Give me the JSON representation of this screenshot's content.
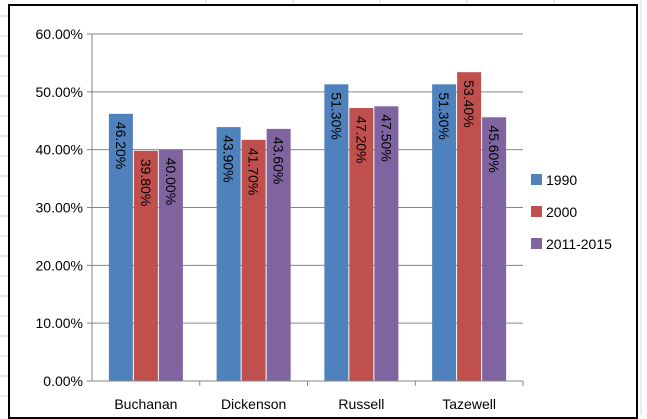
{
  "chart_data": {
    "type": "bar",
    "categories": [
      "Buchanan",
      "Dickenson",
      "Russell",
      "Tazewell"
    ],
    "series": [
      {
        "name": "1990",
        "values": [
          46.2,
          43.9,
          51.3,
          51.3
        ],
        "labels": [
          "46.20%",
          "43.90%",
          "51.30%",
          "51.30%"
        ],
        "color": "#4f81bd"
      },
      {
        "name": "2000",
        "values": [
          39.8,
          41.7,
          47.2,
          53.4
        ],
        "labels": [
          "39.80%",
          "41.70%",
          "47.20%",
          "53.40%"
        ],
        "color": "#c0504d"
      },
      {
        "name": "2011-2015",
        "values": [
          40.0,
          43.6,
          47.5,
          45.6
        ],
        "labels": [
          "40.00%",
          "43.60%",
          "47.50%",
          "45.60%"
        ],
        "color": "#8064a2"
      }
    ],
    "y_ticks": [
      "0.00%",
      "10.00%",
      "20.00%",
      "30.00%",
      "40.00%",
      "50.00%",
      "60.00%"
    ],
    "ylim": [
      0,
      60
    ],
    "grid": true,
    "legend_position": "right",
    "title": "",
    "xlabel": "",
    "ylabel": ""
  }
}
